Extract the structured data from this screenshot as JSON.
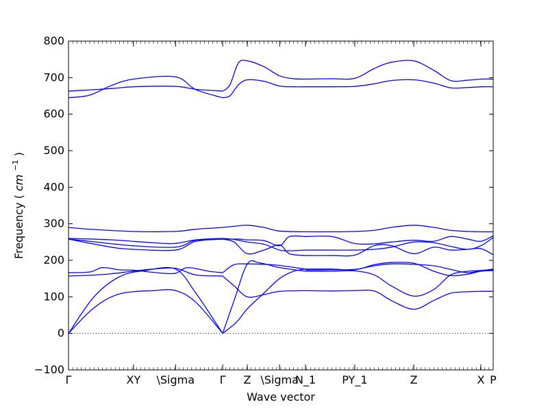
{
  "chart_data": {
    "type": "line",
    "title": "",
    "xlabel": "Wave vector",
    "ylabel": "Frequency",
    "ylabel_unit": "cm",
    "ylabel_unit_exp": "−1",
    "ylim": [
      -100,
      800
    ],
    "yticks": [
      "−100",
      "0",
      "100",
      "200",
      "300",
      "400",
      "500",
      "600",
      "700",
      "800"
    ],
    "ytick_values": [
      -100,
      0,
      100,
      200,
      300,
      400,
      500,
      600,
      700,
      800
    ],
    "xlim": [
      0,
      1
    ],
    "xticks": [
      {
        "label": "Γ",
        "pos": 0.0
      },
      {
        "label": "XY",
        "pos": 0.153
      },
      {
        "label": "\\Sigma",
        "pos": 0.252
      },
      {
        "label": "Γ",
        "pos": 0.363
      },
      {
        "label": "Z",
        "pos": 0.421
      },
      {
        "label": "\\Sigma",
        "pos": 0.497
      },
      {
        "label": "N_1",
        "pos": 0.558
      },
      {
        "label": "PY_1",
        "pos": 0.674
      },
      {
        "label": "Z",
        "pos": 0.813
      },
      {
        "label": "X",
        "pos": 0.971
      },
      {
        "label": "P",
        "pos": 1.0
      }
    ],
    "zero_line": true,
    "line_color": "#0000ff",
    "series": [
      {
        "x": [
          0,
          0.06,
          0.12,
          0.2,
          0.252,
          0.3,
          0.363
        ],
        "values": [
          0,
          70,
          108,
          117,
          117,
          85,
          0
        ]
      },
      {
        "x": [
          0,
          0.06,
          0.12,
          0.18,
          0.252,
          0.3,
          0.363
        ],
        "values": [
          0,
          100,
          155,
          172,
          176,
          110,
          0
        ]
      },
      {
        "x": [
          0,
          0.05,
          0.1,
          0.15,
          0.2,
          0.252,
          0.3,
          0.363
        ],
        "values": [
          157,
          159,
          163,
          170,
          176,
          178,
          160,
          157
        ]
      },
      {
        "x": [
          0,
          0.05,
          0.08,
          0.12,
          0.153,
          0.2,
          0.25,
          0.28,
          0.33,
          0.363
        ],
        "values": [
          166,
          168,
          180,
          174,
          173,
          167,
          164,
          180,
          170,
          166
        ]
      },
      {
        "x": [
          0,
          0.05,
          0.15,
          0.252,
          0.3,
          0.363
        ],
        "values": [
          258,
          252,
          240,
          236,
          255,
          258
        ]
      },
      {
        "x": [
          0,
          0.1,
          0.2,
          0.25,
          0.3,
          0.363
        ],
        "values": [
          260,
          256,
          248,
          246,
          256,
          260
        ]
      },
      {
        "x": [
          0,
          0.1,
          0.153,
          0.252,
          0.3,
          0.363
        ],
        "values": [
          258,
          236,
          230,
          228,
          252,
          258
        ]
      },
      {
        "x": [
          0,
          0.05,
          0.153,
          0.252,
          0.3,
          0.363
        ],
        "values": [
          290,
          285,
          279,
          279,
          285,
          290
        ]
      },
      {
        "x": [
          0,
          0.05,
          0.1,
          0.153,
          0.252,
          0.3,
          0.363
        ],
        "values": [
          645,
          652,
          678,
          696,
          702,
          667,
          645
        ]
      },
      {
        "x": [
          0,
          0.1,
          0.153,
          0.252,
          0.3,
          0.363
        ],
        "values": [
          663,
          670,
          675,
          676,
          668,
          663
        ]
      },
      {
        "x": [
          0.363,
          0.39,
          0.421,
          0.45,
          0.497,
          0.558
        ],
        "values": [
          0,
          90,
          190,
          193,
          180,
          170
        ]
      },
      {
        "x": [
          0.363,
          0.395,
          0.421,
          0.46,
          0.497,
          0.53,
          0.558
        ],
        "values": [
          0,
          30,
          67,
          110,
          150,
          170,
          176
        ]
      },
      {
        "x": [
          0.363,
          0.39,
          0.421,
          0.46,
          0.497,
          0.558
        ],
        "values": [
          157,
          130,
          100,
          106,
          115,
          117
        ]
      },
      {
        "x": [
          0.363,
          0.39,
          0.421,
          0.46,
          0.497,
          0.558
        ],
        "values": [
          166,
          188,
          190,
          189,
          186,
          176
        ]
      },
      {
        "x": [
          0.363,
          0.39,
          0.421,
          0.46,
          0.497,
          0.52,
          0.558
        ],
        "values": [
          258,
          250,
          218,
          228,
          242,
          218,
          213
        ]
      },
      {
        "x": [
          0.363,
          0.39,
          0.421,
          0.46,
          0.497,
          0.52,
          0.558
        ],
        "values": [
          260,
          257,
          250,
          244,
          228,
          226,
          228
        ]
      },
      {
        "x": [
          0.363,
          0.4,
          0.421,
          0.46,
          0.497,
          0.52,
          0.558
        ],
        "values": [
          258,
          258,
          256,
          254,
          240,
          265,
          265
        ]
      },
      {
        "x": [
          0.363,
          0.39,
          0.421,
          0.46,
          0.497,
          0.558
        ],
        "values": [
          290,
          293,
          296,
          290,
          280,
          278
        ]
      },
      {
        "x": [
          0.363,
          0.38,
          0.4,
          0.421,
          0.46,
          0.497,
          0.53,
          0.558
        ],
        "values": [
          645,
          650,
          680,
          694,
          690,
          677,
          675,
          675
        ]
      },
      {
        "x": [
          0.363,
          0.38,
          0.4,
          0.421,
          0.46,
          0.497,
          0.53,
          0.558
        ],
        "values": [
          663,
          680,
          740,
          746,
          730,
          705,
          697,
          696
        ]
      },
      {
        "x": [
          0.558,
          0.62,
          0.674,
          0.72,
          0.76,
          0.813,
          0.86,
          0.9,
          0.94,
          0.971,
          1.0
        ],
        "values": [
          117,
          116,
          117,
          116,
          90,
          66,
          90,
          110,
          114,
          115,
          115
        ]
      },
      {
        "x": [
          0.558,
          0.62,
          0.674,
          0.72,
          0.76,
          0.813,
          0.86,
          0.9,
          0.94,
          0.971,
          1.0
        ],
        "values": [
          170,
          170,
          171,
          160,
          130,
          102,
          120,
          160,
          170,
          172,
          176
        ]
      },
      {
        "x": [
          0.558,
          0.62,
          0.674,
          0.72,
          0.76,
          0.813,
          0.86,
          0.9,
          0.94,
          0.971,
          1.0
        ],
        "values": [
          173,
          174,
          175,
          185,
          190,
          189,
          185,
          175,
          166,
          172,
          174
        ]
      },
      {
        "x": [
          0.558,
          0.62,
          0.674,
          0.72,
          0.76,
          0.813,
          0.86,
          0.9,
          0.94,
          0.971,
          1.0
        ],
        "values": [
          176,
          176,
          174,
          188,
          194,
          192,
          170,
          158,
          162,
          170,
          172
        ]
      },
      {
        "x": [
          0.558,
          0.62,
          0.674,
          0.72,
          0.76,
          0.813,
          0.86,
          0.9,
          0.94,
          0.971,
          1.0
        ],
        "values": [
          213,
          213,
          214,
          240,
          240,
          218,
          236,
          228,
          230,
          232,
          215
        ]
      },
      {
        "x": [
          0.558,
          0.62,
          0.674,
          0.72,
          0.76,
          0.813,
          0.86,
          0.9,
          0.94,
          0.971,
          1.0
        ],
        "values": [
          228,
          228,
          228,
          230,
          236,
          250,
          248,
          238,
          230,
          240,
          262
        ]
      },
      {
        "x": [
          0.558,
          0.62,
          0.674,
          0.72,
          0.76,
          0.813,
          0.86,
          0.9,
          0.94,
          0.971,
          1.0
        ],
        "values": [
          265,
          265,
          246,
          245,
          250,
          255,
          252,
          265,
          258,
          252,
          267
        ]
      },
      {
        "x": [
          0.558,
          0.62,
          0.674,
          0.72,
          0.76,
          0.813,
          0.86,
          0.9,
          0.94,
          0.971,
          1.0
        ],
        "values": [
          278,
          278,
          279,
          282,
          290,
          296,
          290,
          282,
          279,
          278,
          278
        ]
      },
      {
        "x": [
          0.558,
          0.62,
          0.674,
          0.72,
          0.76,
          0.813,
          0.86,
          0.9,
          0.94,
          0.971,
          1.0
        ],
        "values": [
          675,
          675,
          676,
          683,
          692,
          694,
          685,
          672,
          673,
          675,
          675
        ]
      },
      {
        "x": [
          0.558,
          0.62,
          0.674,
          0.72,
          0.76,
          0.813,
          0.86,
          0.9,
          0.94,
          0.971,
          1.0
        ],
        "values": [
          696,
          697,
          698,
          725,
          742,
          746,
          720,
          692,
          693,
          696,
          696
        ]
      }
    ]
  }
}
